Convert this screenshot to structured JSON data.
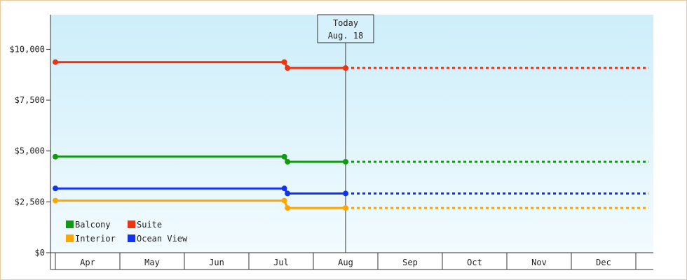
{
  "chart_data": {
    "type": "line",
    "subtype": "step",
    "title": "",
    "xlabel": "",
    "ylabel": "",
    "x_categories": [
      "Apr",
      "May",
      "Jun",
      "Jul",
      "Aug",
      "Sep",
      "Oct",
      "Nov",
      "Dec"
    ],
    "y_ticks": [
      0,
      2500,
      5000,
      7500,
      10000
    ],
    "y_tick_labels": [
      "$0",
      "$2,500",
      "$5,000",
      "$7,500",
      "$10,000"
    ],
    "ylim": [
      0,
      11700
    ],
    "today": {
      "line1": "Today",
      "line2": "Aug. 18",
      "month_position": 4.5
    },
    "series": [
      {
        "name": "Balcony",
        "color": "#119911",
        "points": [
          [
            0,
            4720
          ],
          [
            3.55,
            4720
          ],
          [
            3.6,
            4470
          ],
          [
            4.5,
            4470
          ]
        ],
        "forecast_to": 9.2
      },
      {
        "name": "Suite",
        "color": "#ee3311",
        "points": [
          [
            0,
            9370
          ],
          [
            3.55,
            9370
          ],
          [
            3.6,
            9080
          ],
          [
            4.5,
            9080
          ]
        ],
        "forecast_to": 9.2
      },
      {
        "name": "Interior",
        "color": "#ffa500",
        "points": [
          [
            0,
            2560
          ],
          [
            3.55,
            2560
          ],
          [
            3.6,
            2200
          ],
          [
            4.5,
            2200
          ]
        ],
        "forecast_to": 9.2
      },
      {
        "name": "Ocean View",
        "color": "#1133ee",
        "points": [
          [
            0,
            3160
          ],
          [
            3.55,
            3160
          ],
          [
            3.6,
            2910
          ],
          [
            4.5,
            2910
          ]
        ],
        "forecast_to": 9.2
      }
    ],
    "grid": false,
    "legend": {
      "placement": "bottom-left",
      "columns": [
        [
          "Balcony",
          "Interior"
        ],
        [
          "Suite",
          "Ocean View"
        ]
      ]
    },
    "background_gradient": [
      "#cdeefa",
      "#f2fbfe"
    ]
  }
}
